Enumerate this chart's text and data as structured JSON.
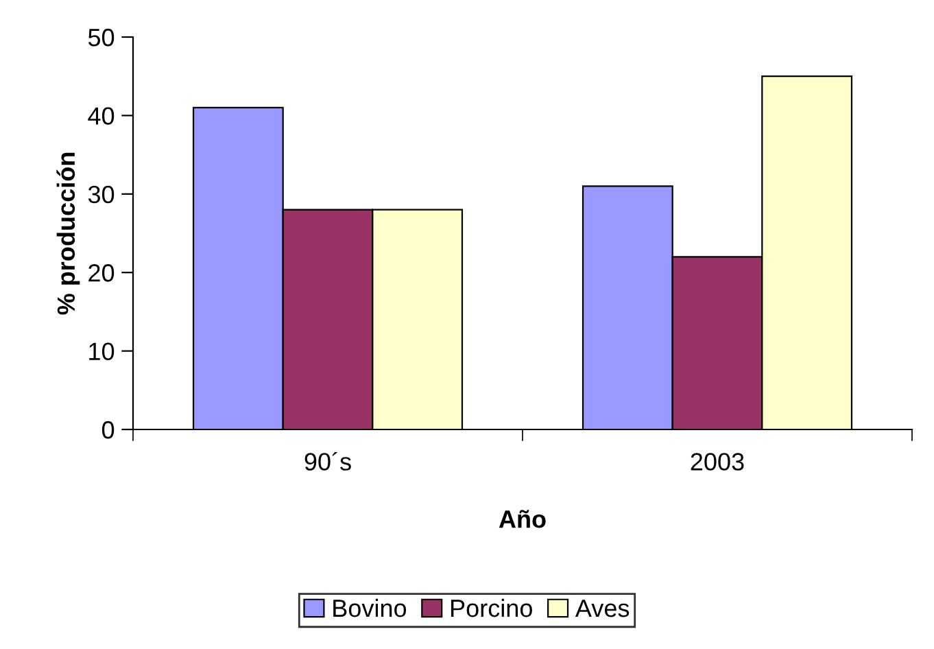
{
  "chart_data": {
    "type": "bar",
    "xlabel": "Año",
    "ylabel": "% producción",
    "categories": [
      "90´s",
      "2003"
    ],
    "series": [
      {
        "name": "Bovino",
        "color": "#9999ff",
        "values": [
          41,
          31
        ]
      },
      {
        "name": "Porcino",
        "color": "#993366",
        "values": [
          28,
          22
        ]
      },
      {
        "name": "Aves",
        "color": "#ffffcc",
        "values": [
          28,
          45
        ]
      }
    ],
    "ylim": [
      0,
      50
    ],
    "yticks": [
      0,
      10,
      20,
      30,
      40,
      50
    ],
    "grid": false,
    "legend": "bottom"
  }
}
